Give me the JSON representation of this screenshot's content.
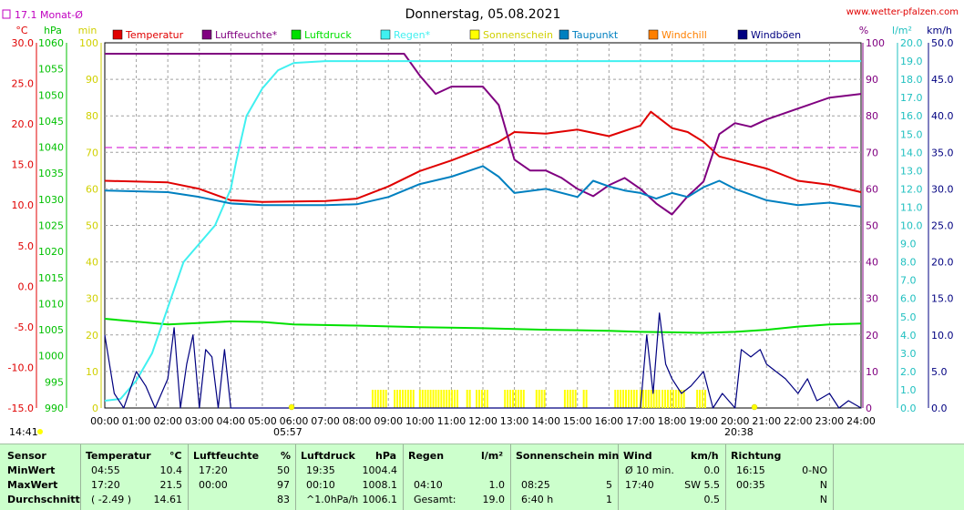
{
  "header": {
    "title": "Donnerstag, 05.08.2021",
    "site": "www.wetter-pfalzen.com",
    "month_avg_label": "17.1 Monat-Ø",
    "unit_c": "°C",
    "unit_hpa": "hPa",
    "unit_min": "min",
    "unit_pct": "%",
    "unit_lm2": "l/m²",
    "unit_kmh": "km/h",
    "sunrise": "05:57",
    "sunset": "20:38",
    "left_time": "14:41"
  },
  "colors": {
    "temperature": "#e00000",
    "humidity": "#800080",
    "pressure": "#00e000",
    "rain": "#40f0f0",
    "sunshine": "#ffff00",
    "dewpoint": "#0080c0",
    "windchill": "#ff8000",
    "gusts": "#000080"
  },
  "legend": [
    {
      "label": "Temperatur",
      "color": "#e00000"
    },
    {
      "label": "Luftfeuchte*",
      "color": "#800080"
    },
    {
      "label": "Luftdruck",
      "color": "#00e000"
    },
    {
      "label": "Regen*",
      "color": "#40f0f0"
    },
    {
      "label": "Sonnenschein",
      "color": "#ffff00"
    },
    {
      "label": "Taupunkt",
      "color": "#0080c0"
    },
    {
      "label": "Windchill",
      "color": "#ff8000"
    },
    {
      "label": "Windböen",
      "color": "#000080"
    }
  ],
  "chart_data": {
    "type": "line",
    "title": "Donnerstag, 05.08.2021",
    "x_range": [
      "00:00",
      "24:00"
    ],
    "x_ticks": [
      "00:00",
      "01:00",
      "02:00",
      "03:00",
      "04:00",
      "05:00",
      "06:00",
      "07:00",
      "08:00",
      "09:00",
      "10:00",
      "11:00",
      "12:00",
      "13:00",
      "14:00",
      "15:00",
      "16:00",
      "17:00",
      "18:00",
      "19:00",
      "20:00",
      "21:00",
      "22:00",
      "23:00",
      "24:00"
    ],
    "axes": {
      "temperature_c": {
        "range": [
          -15,
          30
        ],
        "ticks": [
          "30.0",
          "25.0",
          "20.0",
          "15.0",
          "10.0",
          "5.0",
          "0.0",
          "-5.0",
          "-10.0",
          "-15.0"
        ]
      },
      "pressure_hpa": {
        "range": [
          990,
          1060
        ],
        "ticks": [
          "1060",
          "1055",
          "1050",
          "1045",
          "1040",
          "1035",
          "1030",
          "1025",
          "1020",
          "1015",
          "1010",
          "1005",
          "1000",
          "995",
          "990"
        ]
      },
      "sunshine_min": {
        "range": [
          0,
          100
        ],
        "ticks": [
          "100",
          "90",
          "80",
          "70",
          "60",
          "50",
          "40",
          "30",
          "20",
          "10",
          "0"
        ]
      },
      "humidity_pct": {
        "range": [
          0,
          100
        ],
        "ticks": [
          "100",
          "90",
          "80",
          "70",
          "60",
          "50",
          "40",
          "30",
          "20",
          "10",
          "0"
        ]
      },
      "rain_lm2": {
        "range": [
          0,
          20
        ],
        "ticks": [
          "20.0",
          "19.0",
          "18.0",
          "17.0",
          "16.0",
          "15.0",
          "14.0",
          "13.0",
          "12.0",
          "11.0",
          "10.0",
          "9.0",
          "8.0",
          "7.0",
          "6.0",
          "5.0",
          "4.0",
          "3.0",
          "2.0",
          "1.0",
          "0.0"
        ]
      },
      "wind_kmh": {
        "range": [
          0,
          50
        ],
        "ticks": [
          "50.0",
          "45.0",
          "40.0",
          "35.0",
          "30.0",
          "25.0",
          "20.0",
          "15.0",
          "10.0",
          "5.0",
          "0.0"
        ]
      }
    },
    "reference_line": {
      "label": "17.1 Monat-Ø",
      "value_c": 17.1
    },
    "series": [
      {
        "name": "Temperatur",
        "axis": "temperature_c",
        "points": [
          [
            0,
            13.0
          ],
          [
            2,
            12.8
          ],
          [
            3,
            12.0
          ],
          [
            4,
            10.6
          ],
          [
            5,
            10.4
          ],
          [
            7,
            10.5
          ],
          [
            8,
            10.8
          ],
          [
            9,
            12.3
          ],
          [
            10,
            14.2
          ],
          [
            11,
            15.5
          ],
          [
            12,
            17.0
          ],
          [
            12.5,
            17.8
          ],
          [
            13,
            19.0
          ],
          [
            14,
            18.8
          ],
          [
            15,
            19.3
          ],
          [
            16,
            18.5
          ],
          [
            17,
            19.8
          ],
          [
            17.33,
            21.5
          ],
          [
            18,
            19.5
          ],
          [
            18.5,
            19.0
          ],
          [
            19,
            17.8
          ],
          [
            19.5,
            16.0
          ],
          [
            20,
            15.5
          ],
          [
            21,
            14.5
          ],
          [
            22,
            13.0
          ],
          [
            23,
            12.5
          ],
          [
            24,
            11.6
          ]
        ]
      },
      {
        "name": "Luftfeuchte*",
        "axis": "humidity_pct",
        "points": [
          [
            0,
            97
          ],
          [
            3,
            97
          ],
          [
            6,
            97
          ],
          [
            9.5,
            97
          ],
          [
            10,
            91
          ],
          [
            10.5,
            86
          ],
          [
            11,
            88
          ],
          [
            12,
            88
          ],
          [
            12.5,
            83
          ],
          [
            13,
            68
          ],
          [
            13.5,
            65
          ],
          [
            14,
            65
          ],
          [
            14.5,
            63
          ],
          [
            15,
            60
          ],
          [
            15.5,
            58
          ],
          [
            16,
            61
          ],
          [
            16.5,
            63
          ],
          [
            17,
            60
          ],
          [
            17.5,
            56
          ],
          [
            18,
            53
          ],
          [
            18.5,
            58
          ],
          [
            19,
            62
          ],
          [
            19.5,
            75
          ],
          [
            20,
            78
          ],
          [
            20.5,
            77
          ],
          [
            21,
            79
          ],
          [
            22,
            82
          ],
          [
            23,
            85
          ],
          [
            24,
            86
          ]
        ]
      },
      {
        "name": "Luftdruck",
        "axis": "pressure_hpa",
        "points": [
          [
            0,
            1007.1
          ],
          [
            2,
            1006.0
          ],
          [
            3,
            1006.3
          ],
          [
            4,
            1006.6
          ],
          [
            5,
            1006.5
          ],
          [
            6,
            1006.0
          ],
          [
            8,
            1005.8
          ],
          [
            10,
            1005.5
          ],
          [
            12,
            1005.3
          ],
          [
            14,
            1005.0
          ],
          [
            16,
            1004.8
          ],
          [
            17,
            1004.6
          ],
          [
            18,
            1004.5
          ],
          [
            19,
            1004.4
          ],
          [
            20,
            1004.6
          ],
          [
            21,
            1005.0
          ],
          [
            22,
            1005.6
          ],
          [
            23,
            1006.0
          ],
          [
            24,
            1006.2
          ]
        ]
      },
      {
        "name": "Regen*",
        "axis": "rain_lm2",
        "points": [
          [
            0,
            0.4
          ],
          [
            0.5,
            0.5
          ],
          [
            1,
            1.5
          ],
          [
            1.5,
            3.0
          ],
          [
            2,
            5.5
          ],
          [
            2.5,
            8.0
          ],
          [
            3,
            9.0
          ],
          [
            3.5,
            10.0
          ],
          [
            4,
            12.0
          ],
          [
            4.17,
            13.5
          ],
          [
            4.5,
            16.0
          ],
          [
            5,
            17.5
          ],
          [
            5.5,
            18.5
          ],
          [
            6,
            18.9
          ],
          [
            7,
            19.0
          ],
          [
            24,
            19.0
          ]
        ]
      },
      {
        "name": "Taupunkt",
        "axis": "temperature_c",
        "points": [
          [
            0,
            11.8
          ],
          [
            2,
            11.6
          ],
          [
            3,
            11.0
          ],
          [
            4,
            10.2
          ],
          [
            5,
            10.0
          ],
          [
            7,
            10.0
          ],
          [
            8,
            10.1
          ],
          [
            9,
            11.0
          ],
          [
            10,
            12.6
          ],
          [
            11,
            13.5
          ],
          [
            12,
            14.8
          ],
          [
            12.5,
            13.5
          ],
          [
            13,
            11.5
          ],
          [
            14,
            12.0
          ],
          [
            15,
            11.0
          ],
          [
            15.5,
            13.0
          ],
          [
            16,
            12.3
          ],
          [
            16.5,
            11.8
          ],
          [
            17,
            11.5
          ],
          [
            17.5,
            10.8
          ],
          [
            18,
            11.5
          ],
          [
            18.5,
            11.0
          ],
          [
            19,
            12.2
          ],
          [
            19.5,
            13.0
          ],
          [
            20,
            12.0
          ],
          [
            21,
            10.6
          ],
          [
            22,
            10.0
          ],
          [
            23,
            10.3
          ],
          [
            24,
            9.8
          ]
        ]
      },
      {
        "name": "Windböen",
        "axis": "wind_kmh",
        "points": [
          [
            0,
            10
          ],
          [
            0.3,
            2
          ],
          [
            0.6,
            0
          ],
          [
            1,
            5
          ],
          [
            1.3,
            3
          ],
          [
            1.6,
            0
          ],
          [
            2,
            4
          ],
          [
            2.2,
            11
          ],
          [
            2.4,
            0
          ],
          [
            2.6,
            6
          ],
          [
            2.8,
            10
          ],
          [
            3,
            0
          ],
          [
            3.2,
            8
          ],
          [
            3.4,
            7
          ],
          [
            3.6,
            0
          ],
          [
            3.8,
            8
          ],
          [
            4,
            0
          ],
          [
            17,
            0
          ],
          [
            17.2,
            10
          ],
          [
            17.4,
            2
          ],
          [
            17.6,
            13
          ],
          [
            17.8,
            6
          ],
          [
            18,
            4
          ],
          [
            18.3,
            2
          ],
          [
            18.6,
            3
          ],
          [
            19,
            5
          ],
          [
            19.3,
            0
          ],
          [
            19.6,
            2
          ],
          [
            20,
            0
          ],
          [
            20.2,
            8
          ],
          [
            20.5,
            7
          ],
          [
            20.8,
            8
          ],
          [
            21,
            6
          ],
          [
            21.3,
            5
          ],
          [
            21.6,
            4
          ],
          [
            22,
            2
          ],
          [
            22.3,
            4
          ],
          [
            22.6,
            1
          ],
          [
            23,
            2
          ],
          [
            23.3,
            0
          ],
          [
            23.6,
            1
          ],
          [
            24,
            0
          ]
        ]
      }
    ],
    "sunshine_intervals": [
      [
        8.5,
        9.0
      ],
      [
        9.2,
        9.8
      ],
      [
        10.0,
        11.2
      ],
      [
        11.5,
        11.6
      ],
      [
        11.8,
        12.2
      ],
      [
        12.7,
        13.3
      ],
      [
        13.7,
        14.0
      ],
      [
        14.6,
        15.0
      ],
      [
        15.2,
        15.3
      ],
      [
        16.2,
        16.9
      ],
      [
        17.0,
        17.6
      ],
      [
        17.7,
        18.4
      ],
      [
        18.8,
        19.1
      ]
    ],
    "wind_avg_points": [
      [
        0,
        0
      ],
      [
        4,
        0
      ],
      [
        17,
        0
      ],
      [
        24,
        0
      ]
    ],
    "grid": true,
    "legend_position": "top"
  },
  "stats": {
    "headers": {
      "sensor": "Sensor",
      "temp": "Temperatur",
      "temp_unit": "°C",
      "hum": "Luftfeuchte",
      "hum_unit": "%",
      "press": "Luftdruck",
      "press_unit": "hPa",
      "rain": "Regen",
      "rain_unit": "l/m²",
      "sun": "Sonnenschein min",
      "wind": "Wind",
      "wind_unit": "km/h",
      "dir": "Richtung"
    },
    "rows": [
      {
        "label": "MinWert",
        "temp_time": "04:55",
        "temp_val": "10.4",
        "hum_time": "17:20",
        "hum_val": "50",
        "press_time": "19:35",
        "press_val": "1004.4",
        "rain_time": "",
        "rain_val": "",
        "sun_time": "",
        "sun_val": "",
        "wind_time": "Ø 10 min.",
        "wind_val": "0.0",
        "dir_time": "16:15",
        "dir_val": "0-NO"
      },
      {
        "label": "MaxWert",
        "temp_time": "17:20",
        "temp_val": "21.5",
        "hum_time": "00:00",
        "hum_val": "97",
        "press_time": "00:10",
        "press_val": "1008.1",
        "rain_time": "04:10",
        "rain_val": "1.0",
        "sun_time": "08:25",
        "sun_val": "5",
        "wind_time": "17:40",
        "wind_val": "SW 5.5",
        "dir_time": "00:35",
        "dir_val": "N"
      },
      {
        "label": "Durchschnitt",
        "temp_time": "( -2.49 )",
        "temp_val": "14.61",
        "hum_time": "",
        "hum_val": "83",
        "press_time": "^1.0hPa/h",
        "press_val": "1006.1",
        "rain_time": "Gesamt:",
        "rain_val": "19.0",
        "sun_time": "6:40 h",
        "sun_val": "1",
        "wind_time": "",
        "wind_val": "0.5",
        "dir_time": "",
        "dir_val": "N"
      }
    ]
  }
}
